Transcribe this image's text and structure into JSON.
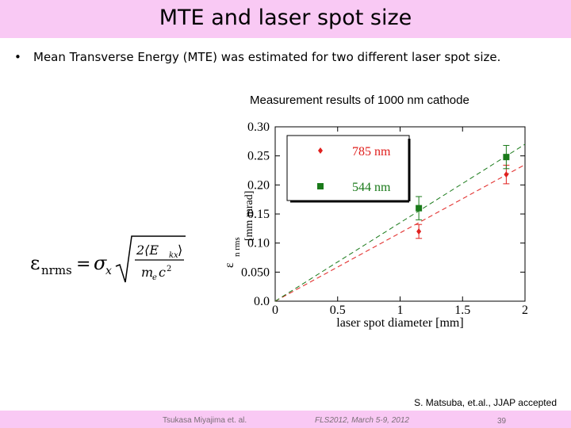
{
  "slide": {
    "title": "MTE and laser spot size",
    "bullet": "•",
    "bullet_text": "Mean Transverse Energy (MTE) was estimated for two different laser spot size.",
    "chart_caption": "Measurement results of 1000 nm cathode",
    "citation": "S. Matsuba, et.al., JJAP accepted"
  },
  "formula": {
    "lhs": "ε",
    "lhs_sub": "nrms",
    "equals": "=",
    "sigma": "σ",
    "sigma_sub": "x",
    "numerator": "2⟨E",
    "numerator_sub": "kx",
    "numerator_end": "⟩",
    "denominator": "m",
    "denominator_sub": "e",
    "denominator_end": "c",
    "denominator_sup": "2"
  },
  "footer": {
    "author": "Tsukasa Miyajima et. al.",
    "conference": "FLS2012, March 5-9, 2012",
    "page": "39"
  },
  "chart_data": {
    "type": "scatter",
    "xlabel": "laser spot diameter [mm]",
    "ylabel_symbol": "ε",
    "ylabel_subscript": "n rms",
    "ylabel_units": "[mm mrad]",
    "xlim": [
      0,
      2
    ],
    "ylim": [
      0,
      0.3
    ],
    "xticks": [
      0,
      0.5,
      1,
      1.5,
      2
    ],
    "xtick_labels": [
      "0",
      "0.5",
      "1",
      "1.5",
      "2"
    ],
    "yticks": [
      0,
      0.05,
      0.1,
      0.15,
      0.2,
      0.25,
      0.3
    ],
    "ytick_labels": [
      "0.0",
      "0.050",
      "0.10",
      "0.15",
      "0.20",
      "0.25",
      "0.30"
    ],
    "legend_position": "top-left",
    "series": [
      {
        "name": "785 nm",
        "color": "#e0201e",
        "marker": "diamond",
        "points": [
          {
            "x": 1.15,
            "y": 0.12,
            "err": 0.012
          },
          {
            "x": 1.85,
            "y": 0.218,
            "err": 0.016
          }
        ],
        "fit": [
          [
            0,
            0.0
          ],
          [
            2,
            0.235
          ]
        ]
      },
      {
        "name": "544 nm",
        "color": "#1a7a1a",
        "marker": "square",
        "points": [
          {
            "x": 1.15,
            "y": 0.16,
            "err": 0.02
          },
          {
            "x": 1.85,
            "y": 0.248,
            "err": 0.02
          }
        ],
        "fit": [
          [
            0,
            0.0
          ],
          [
            2,
            0.27
          ]
        ]
      }
    ]
  }
}
